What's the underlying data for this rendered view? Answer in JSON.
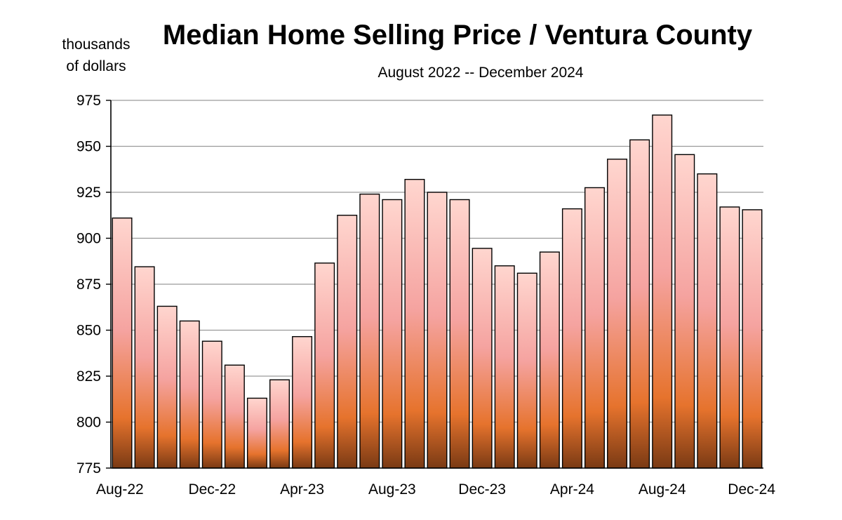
{
  "chart_data": {
    "type": "bar",
    "title": "Median Home Selling Price / Ventura County",
    "subtitle": "August 2022 -- December 2024",
    "ylabel_lines": [
      "thousands",
      "of dollars"
    ],
    "xlabel": "",
    "ylim": [
      775,
      975
    ],
    "yticks": [
      775,
      800,
      825,
      850,
      875,
      900,
      925,
      950,
      975
    ],
    "grid": true,
    "categories": [
      "Aug-22",
      "Sep-22",
      "Oct-22",
      "Nov-22",
      "Dec-22",
      "Jan-23",
      "Feb-23",
      "Mar-23",
      "Apr-23",
      "May-23",
      "Jun-23",
      "Jul-23",
      "Aug-23",
      "Sep-23",
      "Oct-23",
      "Nov-23",
      "Dec-23",
      "Jan-24",
      "Feb-24",
      "Mar-24",
      "Apr-24",
      "May-24",
      "Jun-24",
      "Jul-24",
      "Aug-24",
      "Sep-24",
      "Oct-24",
      "Nov-24",
      "Dec-24"
    ],
    "x_tick_labels": [
      "Aug-22",
      "Dec-22",
      "Apr-23",
      "Aug-23",
      "Dec-23",
      "Apr-24",
      "Aug-24",
      "Dec-24"
    ],
    "series": [
      {
        "name": "Median Home Selling Price",
        "values": [
          911,
          884.5,
          863,
          855,
          844,
          831,
          813,
          823,
          846.5,
          886.5,
          912.5,
          924,
          921,
          932,
          925,
          921,
          894.5,
          885,
          881,
          892.5,
          916,
          927.5,
          943,
          953.5,
          967,
          945.5,
          935,
          917,
          915.5
        ]
      }
    ]
  }
}
